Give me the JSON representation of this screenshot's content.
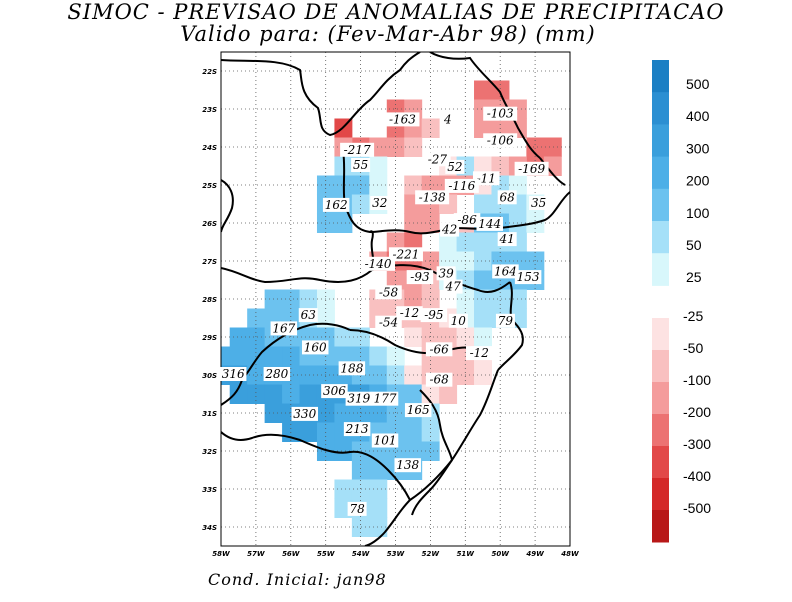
{
  "title_line1": "SIMOC - PREVISAO DE ANOMALIAS DE PRECIPITACAO",
  "title_line2": "Valido para: (Fev-Mar-Abr 98) (mm)",
  "footer": "Cond. Inicial: jan98",
  "axes": {
    "lon_ticks": [
      "58W",
      "57W",
      "56W",
      "55W",
      "54W",
      "53W",
      "52W",
      "51W",
      "50W",
      "49W",
      "48W"
    ],
    "lat_ticks": [
      "22S",
      "23S",
      "24S",
      "25S",
      "26S",
      "27S",
      "28S",
      "29S",
      "30S",
      "31S",
      "32S",
      "33S",
      "34S"
    ]
  },
  "colorbar": {
    "positive_labels": [
      "500",
      "400",
      "300",
      "200",
      "100",
      "50",
      "25"
    ],
    "negative_labels": [
      "-25",
      "-50",
      "-100",
      "-200",
      "-300",
      "-400",
      "-500"
    ],
    "positive_colors": [
      "#1b7fc4",
      "#2b8fd2",
      "#3a9fdc",
      "#4dafe7",
      "#6cc2ef",
      "#a5e0f8",
      "#d8f7fb"
    ],
    "negative_colors": [
      "#fde2e2",
      "#f9c0c0",
      "#f49c9c",
      "#ec7272",
      "#e24848",
      "#d42828",
      "#b81818"
    ]
  },
  "map_labels": [
    {
      "text": "-163",
      "lon": 52.8,
      "lat": 23.3
    },
    {
      "text": "4",
      "lon": 51.5,
      "lat": 23.3
    },
    {
      "text": "-103",
      "lon": 50.0,
      "lat": 23.15
    },
    {
      "text": "-106",
      "lon": 50.0,
      "lat": 23.85
    },
    {
      "text": "-217",
      "lon": 54.1,
      "lat": 24.1
    },
    {
      "text": "55",
      "lon": 54.0,
      "lat": 24.5
    },
    {
      "text": "-27",
      "lon": 51.8,
      "lat": 24.35
    },
    {
      "text": "52",
      "lon": 51.3,
      "lat": 24.55
    },
    {
      "text": "-169",
      "lon": 49.1,
      "lat": 24.6
    },
    {
      "text": "-11",
      "lon": 50.4,
      "lat": 24.85
    },
    {
      "text": "-116",
      "lon": 51.1,
      "lat": 25.05
    },
    {
      "text": "-138",
      "lon": 51.95,
      "lat": 25.35
    },
    {
      "text": "68",
      "lon": 49.8,
      "lat": 25.35
    },
    {
      "text": "35",
      "lon": 48.9,
      "lat": 25.5
    },
    {
      "text": "162",
      "lon": 54.7,
      "lat": 25.55
    },
    {
      "text": "32",
      "lon": 53.45,
      "lat": 25.5
    },
    {
      "text": "-86",
      "lon": 50.95,
      "lat": 25.95
    },
    {
      "text": "144",
      "lon": 50.3,
      "lat": 26.05
    },
    {
      "text": "42",
      "lon": 51.45,
      "lat": 26.2
    },
    {
      "text": "41",
      "lon": 49.8,
      "lat": 26.45
    },
    {
      "text": "-221",
      "lon": 52.7,
      "lat": 26.85
    },
    {
      "text": "-140",
      "lon": 53.5,
      "lat": 27.1
    },
    {
      "text": "39",
      "lon": 51.55,
      "lat": 27.35
    },
    {
      "text": "-93",
      "lon": 52.3,
      "lat": 27.45
    },
    {
      "text": "164",
      "lon": 49.85,
      "lat": 27.3
    },
    {
      "text": "153",
      "lon": 49.2,
      "lat": 27.45
    },
    {
      "text": "47",
      "lon": 51.35,
      "lat": 27.7
    },
    {
      "text": "-58",
      "lon": 53.2,
      "lat": 27.85
    },
    {
      "text": "63",
      "lon": 55.5,
      "lat": 28.45
    },
    {
      "text": "-12",
      "lon": 52.6,
      "lat": 28.4
    },
    {
      "text": "-95",
      "lon": 51.9,
      "lat": 28.45
    },
    {
      "text": "-54",
      "lon": 53.2,
      "lat": 28.65
    },
    {
      "text": "10",
      "lon": 51.2,
      "lat": 28.6
    },
    {
      "text": "79",
      "lon": 49.85,
      "lat": 28.6
    },
    {
      "text": "167",
      "lon": 56.2,
      "lat": 28.8
    },
    {
      "text": "160",
      "lon": 55.3,
      "lat": 29.3
    },
    {
      "text": "-66",
      "lon": 51.75,
      "lat": 29.35
    },
    {
      "text": "-12",
      "lon": 50.6,
      "lat": 29.45
    },
    {
      "text": "188",
      "lon": 54.25,
      "lat": 29.85
    },
    {
      "text": "316",
      "lon": 57.65,
      "lat": 30.0
    },
    {
      "text": "280",
      "lon": 56.4,
      "lat": 30.0
    },
    {
      "text": "-68",
      "lon": 51.75,
      "lat": 30.15
    },
    {
      "text": "306",
      "lon": 54.75,
      "lat": 30.45
    },
    {
      "text": "319",
      "lon": 54.05,
      "lat": 30.65
    },
    {
      "text": "177",
      "lon": 53.3,
      "lat": 30.65
    },
    {
      "text": "165",
      "lon": 52.35,
      "lat": 30.95
    },
    {
      "text": "330",
      "lon": 55.6,
      "lat": 31.05
    },
    {
      "text": "213",
      "lon": 54.1,
      "lat": 31.45
    },
    {
      "text": "101",
      "lon": 53.3,
      "lat": 31.75
    },
    {
      "text": "138",
      "lon": 52.65,
      "lat": 32.4
    },
    {
      "text": "78",
      "lon": 54.1,
      "lat": 33.55
    }
  ],
  "anomaly_cells": [
    {
      "lon": 54.5,
      "lat": 23.5,
      "v": -300
    },
    {
      "lon": 53.0,
      "lat": 23.0,
      "v": -200
    },
    {
      "lon": 52.5,
      "lat": 23.0,
      "v": -150
    },
    {
      "lon": 53.0,
      "lat": 23.5,
      "v": -250
    },
    {
      "lon": 52.5,
      "lat": 23.5,
      "v": -150
    },
    {
      "lon": 52.0,
      "lat": 23.5,
      "v": -60
    },
    {
      "lon": 50.5,
      "lat": 22.5,
      "v": -200
    },
    {
      "lon": 50.0,
      "lat": 22.5,
      "v": -200
    },
    {
      "lon": 50.5,
      "lat": 23.0,
      "v": -150
    },
    {
      "lon": 50.0,
      "lat": 23.0,
      "v": -150
    },
    {
      "lon": 49.5,
      "lat": 23.0,
      "v": -120
    },
    {
      "lon": 50.5,
      "lat": 23.5,
      "v": -100
    },
    {
      "lon": 50.0,
      "lat": 23.5,
      "v": -120
    },
    {
      "lon": 49.5,
      "lat": 23.5,
      "v": -100
    },
    {
      "lon": 49.0,
      "lat": 24.0,
      "v": -250
    },
    {
      "lon": 48.5,
      "lat": 24.0,
      "v": -200
    },
    {
      "lon": 49.0,
      "lat": 24.5,
      "v": -200
    },
    {
      "lon": 48.5,
      "lat": 24.5,
      "v": -150
    },
    {
      "lon": 54.0,
      "lat": 24.0,
      "v": -220
    },
    {
      "lon": 53.5,
      "lat": 24.0,
      "v": -150
    },
    {
      "lon": 54.5,
      "lat": 24.0,
      "v": -150
    },
    {
      "lon": 53.0,
      "lat": 24.0,
      "v": -120
    },
    {
      "lon": 52.5,
      "lat": 24.0,
      "v": -80
    },
    {
      "lon": 54.5,
      "lat": 24.5,
      "v": 80
    },
    {
      "lon": 54.0,
      "lat": 24.5,
      "v": 60
    },
    {
      "lon": 53.5,
      "lat": 24.5,
      "v": 30
    },
    {
      "lon": 51.5,
      "lat": 24.5,
      "v": -30
    },
    {
      "lon": 51.0,
      "lat": 24.5,
      "v": 60
    },
    {
      "lon": 50.5,
      "lat": 24.5,
      "v": -30
    },
    {
      "lon": 50.0,
      "lat": 24.5,
      "v": -60
    },
    {
      "lon": 49.5,
      "lat": 24.5,
      "v": -100
    },
    {
      "lon": 54.5,
      "lat": 25.0,
      "v": 150
    },
    {
      "lon": 55.0,
      "lat": 25.0,
      "v": 150
    },
    {
      "lon": 54.0,
      "lat": 25.0,
      "v": 100
    },
    {
      "lon": 53.5,
      "lat": 25.0,
      "v": 40
    },
    {
      "lon": 52.5,
      "lat": 25.0,
      "v": -60
    },
    {
      "lon": 52.0,
      "lat": 25.0,
      "v": -150
    },
    {
      "lon": 51.5,
      "lat": 25.0,
      "v": -120
    },
    {
      "lon": 51.0,
      "lat": 25.0,
      "v": -100
    },
    {
      "lon": 50.5,
      "lat": 25.0,
      "v": -40
    },
    {
      "lon": 50.0,
      "lat": 25.0,
      "v": 60
    },
    {
      "lon": 49.5,
      "lat": 25.0,
      "v": 40
    },
    {
      "lon": 55.0,
      "lat": 25.5,
      "v": 170
    },
    {
      "lon": 54.5,
      "lat": 25.5,
      "v": 160
    },
    {
      "lon": 54.0,
      "lat": 25.5,
      "v": 80
    },
    {
      "lon": 53.5,
      "lat": 25.5,
      "v": 30
    },
    {
      "lon": 52.5,
      "lat": 25.5,
      "v": -100
    },
    {
      "lon": 52.0,
      "lat": 25.5,
      "v": -150
    },
    {
      "lon": 51.5,
      "lat": 25.5,
      "v": -80
    },
    {
      "lon": 50.5,
      "lat": 25.5,
      "v": 60
    },
    {
      "lon": 50.0,
      "lat": 25.5,
      "v": 80
    },
    {
      "lon": 49.5,
      "lat": 25.5,
      "v": 60
    },
    {
      "lon": 49.0,
      "lat": 25.5,
      "v": 40
    },
    {
      "lon": 55.0,
      "lat": 26.0,
      "v": 140
    },
    {
      "lon": 54.5,
      "lat": 26.0,
      "v": 120
    },
    {
      "lon": 52.5,
      "lat": 26.0,
      "v": -150
    },
    {
      "lon": 52.0,
      "lat": 26.0,
      "v": -120
    },
    {
      "lon": 51.0,
      "lat": 26.0,
      "v": -80
    },
    {
      "lon": 50.5,
      "lat": 26.0,
      "v": 140
    },
    {
      "lon": 50.0,
      "lat": 26.0,
      "v": 120
    },
    {
      "lon": 49.5,
      "lat": 26.0,
      "v": 80
    },
    {
      "lon": 49.0,
      "lat": 26.0,
      "v": 40
    },
    {
      "lon": 53.0,
      "lat": 26.5,
      "v": -150
    },
    {
      "lon": 52.5,
      "lat": 26.5,
      "v": -200
    },
    {
      "lon": 51.5,
      "lat": 26.5,
      "v": 40
    },
    {
      "lon": 51.0,
      "lat": 26.5,
      "v": 60
    },
    {
      "lon": 50.5,
      "lat": 26.5,
      "v": 80
    },
    {
      "lon": 50.0,
      "lat": 26.5,
      "v": 60
    },
    {
      "lon": 49.5,
      "lat": 26.5,
      "v": 50
    },
    {
      "lon": 53.5,
      "lat": 27.0,
      "v": -150
    },
    {
      "lon": 53.0,
      "lat": 27.0,
      "v": -200
    },
    {
      "lon": 52.5,
      "lat": 27.0,
      "v": -200
    },
    {
      "lon": 52.0,
      "lat": 27.0,
      "v": -120
    },
    {
      "lon": 51.5,
      "lat": 27.0,
      "v": 40
    },
    {
      "lon": 51.0,
      "lat": 27.0,
      "v": 40
    },
    {
      "lon": 50.5,
      "lat": 27.0,
      "v": 80
    },
    {
      "lon": 50.0,
      "lat": 27.0,
      "v": 160
    },
    {
      "lon": 49.5,
      "lat": 27.0,
      "v": 150
    },
    {
      "lon": 49.0,
      "lat": 27.0,
      "v": 100
    },
    {
      "lon": 53.0,
      "lat": 27.5,
      "v": -120
    },
    {
      "lon": 52.5,
      "lat": 27.5,
      "v": -100
    },
    {
      "lon": 52.0,
      "lat": 27.5,
      "v": -90
    },
    {
      "lon": 51.5,
      "lat": 27.5,
      "v": 40
    },
    {
      "lon": 51.0,
      "lat": 27.5,
      "v": 50
    },
    {
      "lon": 50.5,
      "lat": 27.5,
      "v": 100
    },
    {
      "lon": 50.0,
      "lat": 27.5,
      "v": 160
    },
    {
      "lon": 49.5,
      "lat": 27.5,
      "v": 150
    },
    {
      "lon": 49.0,
      "lat": 27.5,
      "v": 100
    },
    {
      "lon": 56.5,
      "lat": 28.0,
      "v": 160
    },
    {
      "lon": 56.0,
      "lat": 28.0,
      "v": 120
    },
    {
      "lon": 55.5,
      "lat": 28.0,
      "v": 80
    },
    {
      "lon": 55.0,
      "lat": 28.0,
      "v": 40
    },
    {
      "lon": 53.5,
      "lat": 28.0,
      "v": -60
    },
    {
      "lon": 53.0,
      "lat": 28.0,
      "v": -60
    },
    {
      "lon": 52.5,
      "lat": 28.0,
      "v": -100
    },
    {
      "lon": 52.0,
      "lat": 28.0,
      "v": -80
    },
    {
      "lon": 51.0,
      "lat": 28.0,
      "v": 40
    },
    {
      "lon": 50.5,
      "lat": 28.0,
      "v": 80
    },
    {
      "lon": 50.0,
      "lat": 28.0,
      "v": 90
    },
    {
      "lon": 49.5,
      "lat": 28.0,
      "v": 80
    },
    {
      "lon": 57.0,
      "lat": 28.5,
      "v": 170
    },
    {
      "lon": 56.5,
      "lat": 28.5,
      "v": 170
    },
    {
      "lon": 56.0,
      "lat": 28.5,
      "v": 120
    },
    {
      "lon": 55.5,
      "lat": 28.5,
      "v": 70
    },
    {
      "lon": 55.0,
      "lat": 28.5,
      "v": 40
    },
    {
      "lon": 53.5,
      "lat": 28.5,
      "v": -50
    },
    {
      "lon": 53.0,
      "lat": 28.5,
      "v": -50
    },
    {
      "lon": 52.5,
      "lat": 28.5,
      "v": -80
    },
    {
      "lon": 52.0,
      "lat": 28.5,
      "v": -90
    },
    {
      "lon": 51.5,
      "lat": 28.5,
      "v": -40
    },
    {
      "lon": 51.0,
      "lat": 28.5,
      "v": 20
    },
    {
      "lon": 50.5,
      "lat": 28.5,
      "v": 50
    },
    {
      "lon": 50.0,
      "lat": 28.5,
      "v": 80
    },
    {
      "lon": 49.5,
      "lat": 28.5,
      "v": 70
    },
    {
      "lon": 57.5,
      "lat": 29.0,
      "v": 220
    },
    {
      "lon": 57.0,
      "lat": 29.0,
      "v": 200
    },
    {
      "lon": 56.5,
      "lat": 29.0,
      "v": 180
    },
    {
      "lon": 56.0,
      "lat": 29.0,
      "v": 170
    },
    {
      "lon": 55.5,
      "lat": 29.0,
      "v": 150
    },
    {
      "lon": 55.0,
      "lat": 29.0,
      "v": 130
    },
    {
      "lon": 54.5,
      "lat": 29.0,
      "v": 90
    },
    {
      "lon": 54.0,
      "lat": 29.0,
      "v": 50
    },
    {
      "lon": 52.5,
      "lat": 29.0,
      "v": -30
    },
    {
      "lon": 52.0,
      "lat": 29.0,
      "v": -60
    },
    {
      "lon": 51.5,
      "lat": 29.0,
      "v": -70
    },
    {
      "lon": 51.0,
      "lat": 29.0,
      "v": -40
    },
    {
      "lon": 50.5,
      "lat": 29.0,
      "v": 30
    },
    {
      "lon": 58.0,
      "lat": 29.5,
      "v": 260
    },
    {
      "lon": 57.5,
      "lat": 29.5,
      "v": 270
    },
    {
      "lon": 57.0,
      "lat": 29.5,
      "v": 260
    },
    {
      "lon": 56.5,
      "lat": 29.5,
      "v": 230
    },
    {
      "lon": 56.0,
      "lat": 29.5,
      "v": 200
    },
    {
      "lon": 55.5,
      "lat": 29.5,
      "v": 170
    },
    {
      "lon": 55.0,
      "lat": 29.5,
      "v": 180
    },
    {
      "lon": 54.5,
      "lat": 29.5,
      "v": 170
    },
    {
      "lon": 54.0,
      "lat": 29.5,
      "v": 120
    },
    {
      "lon": 53.5,
      "lat": 29.5,
      "v": 80
    },
    {
      "lon": 53.0,
      "lat": 29.5,
      "v": 30
    },
    {
      "lon": 52.0,
      "lat": 29.5,
      "v": -60
    },
    {
      "lon": 51.5,
      "lat": 29.5,
      "v": -70
    },
    {
      "lon": 51.0,
      "lat": 29.5,
      "v": -50
    },
    {
      "lon": 50.5,
      "lat": 29.5,
      "v": -20
    },
    {
      "lon": 58.0,
      "lat": 30.0,
      "v": 300
    },
    {
      "lon": 57.5,
      "lat": 30.0,
      "v": 320
    },
    {
      "lon": 57.0,
      "lat": 30.0,
      "v": 290
    },
    {
      "lon": 56.5,
      "lat": 30.0,
      "v": 280
    },
    {
      "lon": 56.0,
      "lat": 30.0,
      "v": 260
    },
    {
      "lon": 55.5,
      "lat": 30.0,
      "v": 230
    },
    {
      "lon": 55.0,
      "lat": 30.0,
      "v": 220
    },
    {
      "lon": 54.5,
      "lat": 30.0,
      "v": 200
    },
    {
      "lon": 54.0,
      "lat": 30.0,
      "v": 190
    },
    {
      "lon": 53.5,
      "lat": 30.0,
      "v": 140
    },
    {
      "lon": 53.0,
      "lat": 30.0,
      "v": 80
    },
    {
      "lon": 52.5,
      "lat": 30.0,
      "v": -30
    },
    {
      "lon": 52.0,
      "lat": 30.0,
      "v": -60
    },
    {
      "lon": 51.5,
      "lat": 30.0,
      "v": -70
    },
    {
      "lon": 51.0,
      "lat": 30.0,
      "v": -50
    },
    {
      "lon": 50.5,
      "lat": 30.0,
      "v": -30
    },
    {
      "lon": 57.5,
      "lat": 30.5,
      "v": 310
    },
    {
      "lon": 57.0,
      "lat": 30.5,
      "v": 300
    },
    {
      "lon": 56.5,
      "lat": 30.5,
      "v": 300
    },
    {
      "lon": 56.0,
      "lat": 30.5,
      "v": 290
    },
    {
      "lon": 55.5,
      "lat": 30.5,
      "v": 300
    },
    {
      "lon": 55.0,
      "lat": 30.5,
      "v": 310
    },
    {
      "lon": 54.5,
      "lat": 30.5,
      "v": 300
    },
    {
      "lon": 54.0,
      "lat": 30.5,
      "v": 300
    },
    {
      "lon": 53.5,
      "lat": 30.5,
      "v": 220
    },
    {
      "lon": 53.0,
      "lat": 30.5,
      "v": 170
    },
    {
      "lon": 52.5,
      "lat": 30.5,
      "v": 120
    },
    {
      "lon": 52.0,
      "lat": 30.5,
      "v": -30
    },
    {
      "lon": 51.5,
      "lat": 30.5,
      "v": -50
    },
    {
      "lon": 56.5,
      "lat": 31.0,
      "v": 320
    },
    {
      "lon": 56.0,
      "lat": 31.0,
      "v": 330
    },
    {
      "lon": 55.5,
      "lat": 31.0,
      "v": 330
    },
    {
      "lon": 55.0,
      "lat": 31.0,
      "v": 310
    },
    {
      "lon": 54.5,
      "lat": 31.0,
      "v": 280
    },
    {
      "lon": 54.0,
      "lat": 31.0,
      "v": 250
    },
    {
      "lon": 53.5,
      "lat": 31.0,
      "v": 200
    },
    {
      "lon": 53.0,
      "lat": 31.0,
      "v": 170
    },
    {
      "lon": 52.5,
      "lat": 31.0,
      "v": 160
    },
    {
      "lon": 52.0,
      "lat": 31.0,
      "v": 80
    },
    {
      "lon": 56.0,
      "lat": 31.5,
      "v": 300
    },
    {
      "lon": 55.5,
      "lat": 31.5,
      "v": 300
    },
    {
      "lon": 55.0,
      "lat": 31.5,
      "v": 280
    },
    {
      "lon": 54.5,
      "lat": 31.5,
      "v": 250
    },
    {
      "lon": 54.0,
      "lat": 31.5,
      "v": 220
    },
    {
      "lon": 53.5,
      "lat": 31.5,
      "v": 160
    },
    {
      "lon": 53.0,
      "lat": 31.5,
      "v": 120
    },
    {
      "lon": 52.5,
      "lat": 31.5,
      "v": 100
    },
    {
      "lon": 52.0,
      "lat": 31.5,
      "v": 60
    },
    {
      "lon": 55.0,
      "lat": 32.0,
      "v": 250
    },
    {
      "lon": 54.5,
      "lat": 32.0,
      "v": 220
    },
    {
      "lon": 54.0,
      "lat": 32.0,
      "v": 180
    },
    {
      "lon": 53.5,
      "lat": 32.0,
      "v": 150
    },
    {
      "lon": 53.0,
      "lat": 32.0,
      "v": 130
    },
    {
      "lon": 52.5,
      "lat": 32.0,
      "v": 140
    },
    {
      "lon": 52.0,
      "lat": 32.0,
      "v": 100
    },
    {
      "lon": 54.0,
      "lat": 32.5,
      "v": 150
    },
    {
      "lon": 53.5,
      "lat": 32.5,
      "v": 120
    },
    {
      "lon": 53.0,
      "lat": 32.5,
      "v": 130
    },
    {
      "lon": 52.5,
      "lat": 32.5,
      "v": 130
    },
    {
      "lon": 54.5,
      "lat": 33.0,
      "v": 80
    },
    {
      "lon": 54.0,
      "lat": 33.0,
      "v": 90
    },
    {
      "lon": 53.5,
      "lat": 33.0,
      "v": 60
    },
    {
      "lon": 54.5,
      "lat": 33.5,
      "v": 70
    },
    {
      "lon": 54.0,
      "lat": 33.5,
      "v": 80
    },
    {
      "lon": 53.5,
      "lat": 33.5,
      "v": 50
    },
    {
      "lon": 54.0,
      "lat": 34.0,
      "v": 60
    },
    {
      "lon": 53.5,
      "lat": 34.0,
      "v": 50
    }
  ]
}
